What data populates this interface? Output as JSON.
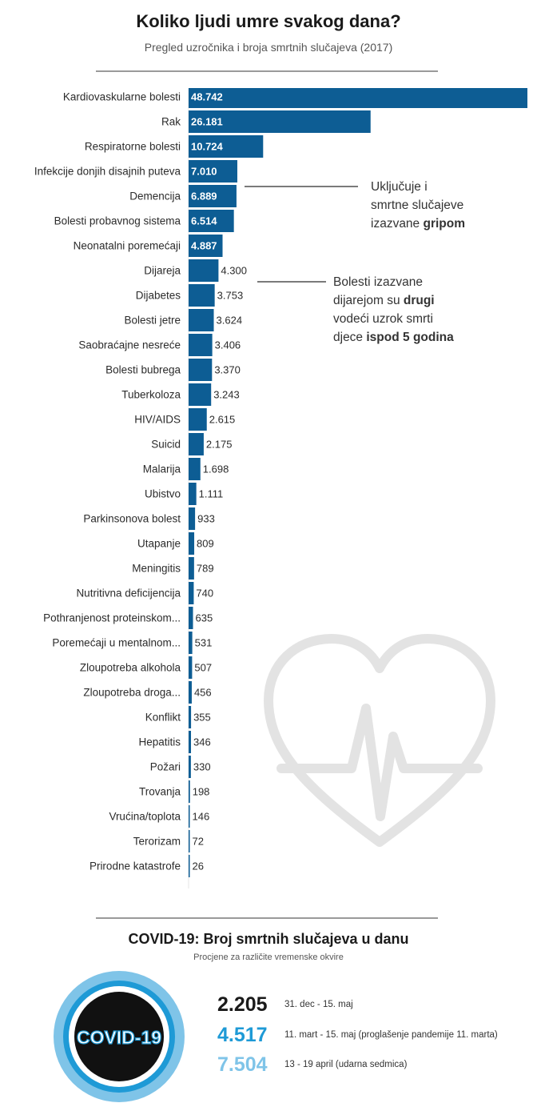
{
  "header": {
    "title": "Koliko ljudi umre svakog dana?",
    "subtitle": "Pregled uzročnika i broja smrtnih slučajeva (2017)"
  },
  "colors": {
    "bar": "#0d5d94",
    "ann_line": "#7a7a7a",
    "covid_dark": "#1a1a1a",
    "covid_mid": "#1e9ad6",
    "covid_light": "#7fc4e8"
  },
  "chart_data": {
    "type": "bar",
    "orientation": "horizontal",
    "title": "Koliko ljudi umre svakog dana?",
    "xlabel": "",
    "ylabel": "",
    "xlim": [
      0,
      48742
    ],
    "categories": [
      "Kardiovaskularne bolesti",
      "Rak",
      "Respiratorne bolesti",
      "Infekcije donjih disajnih puteva",
      "Demencija",
      "Bolesti probavnog sistema",
      "Neonatalni poremećaji",
      "Dijareja",
      "Dijabetes",
      "Bolesti jetre",
      "Saobraćajne nesreće",
      "Bolesti bubrega",
      "Tuberkoloza",
      "HIV/AIDS",
      "Suicid",
      "Malarija",
      "Ubistvo",
      "Parkinsonova bolest",
      "Utapanje",
      "Meningitis",
      "Nutritivna deficijencija",
      "Pothranjenost proteinskom...",
      "Poremećaji u mentalnom...",
      "Zloupotreba alkohola",
      "Zloupotreba droga...",
      "Konflikt",
      "Hepatitis",
      "Požari",
      "Trovanja",
      "Vrućina/toplota",
      "Terorizam",
      "Prirodne katastrofe"
    ],
    "values": [
      48742,
      26181,
      10724,
      7010,
      6889,
      6514,
      4887,
      4300,
      3753,
      3624,
      3406,
      3370,
      3243,
      2615,
      2175,
      1698,
      1111,
      933,
      809,
      789,
      740,
      635,
      531,
      507,
      456,
      355,
      346,
      330,
      198,
      146,
      72,
      26
    ],
    "value_labels": [
      "48.742",
      "26.181",
      "10.724",
      "7.010",
      "6.889",
      "6.514",
      "4.887",
      "4.300",
      "3.753",
      "3.624",
      "3.406",
      "3.370",
      "3.243",
      "2.615",
      "2.175",
      "1.698",
      "1.111",
      "933",
      "809",
      "789",
      "740",
      "635",
      "531",
      "507",
      "456",
      "355",
      "346",
      "330",
      "198",
      "146",
      "72",
      "26"
    ]
  },
  "annotations": {
    "influenza": {
      "line1": "Uključuje i",
      "line2": "smrtne slučajeve",
      "line3_pre": "izazvane ",
      "line3_bold": "gripom"
    },
    "diarrhea": {
      "line1": "Bolesti izazvane",
      "line2_pre": "dijarejom su ",
      "line2_bold": "drugi",
      "line3": "vodeći uzrok smrti",
      "line4_pre": "djece ",
      "line4_bold": "ispod 5 godina"
    }
  },
  "covid": {
    "title": "COVID-19: Broj smrtnih slučajeva u danu",
    "subtitle": "Procjene za različite vremenske okvire",
    "badge_text": "COVID-19",
    "stats": [
      {
        "value": "2.205",
        "period": "31. dec - 15. maj"
      },
      {
        "value": "4.517",
        "period": "11. mart - 15. maj (proglašenje pandemije 11. marta)"
      },
      {
        "value": "7.504",
        "period": "13 - 19 april (udarna sedmica)"
      }
    ]
  }
}
